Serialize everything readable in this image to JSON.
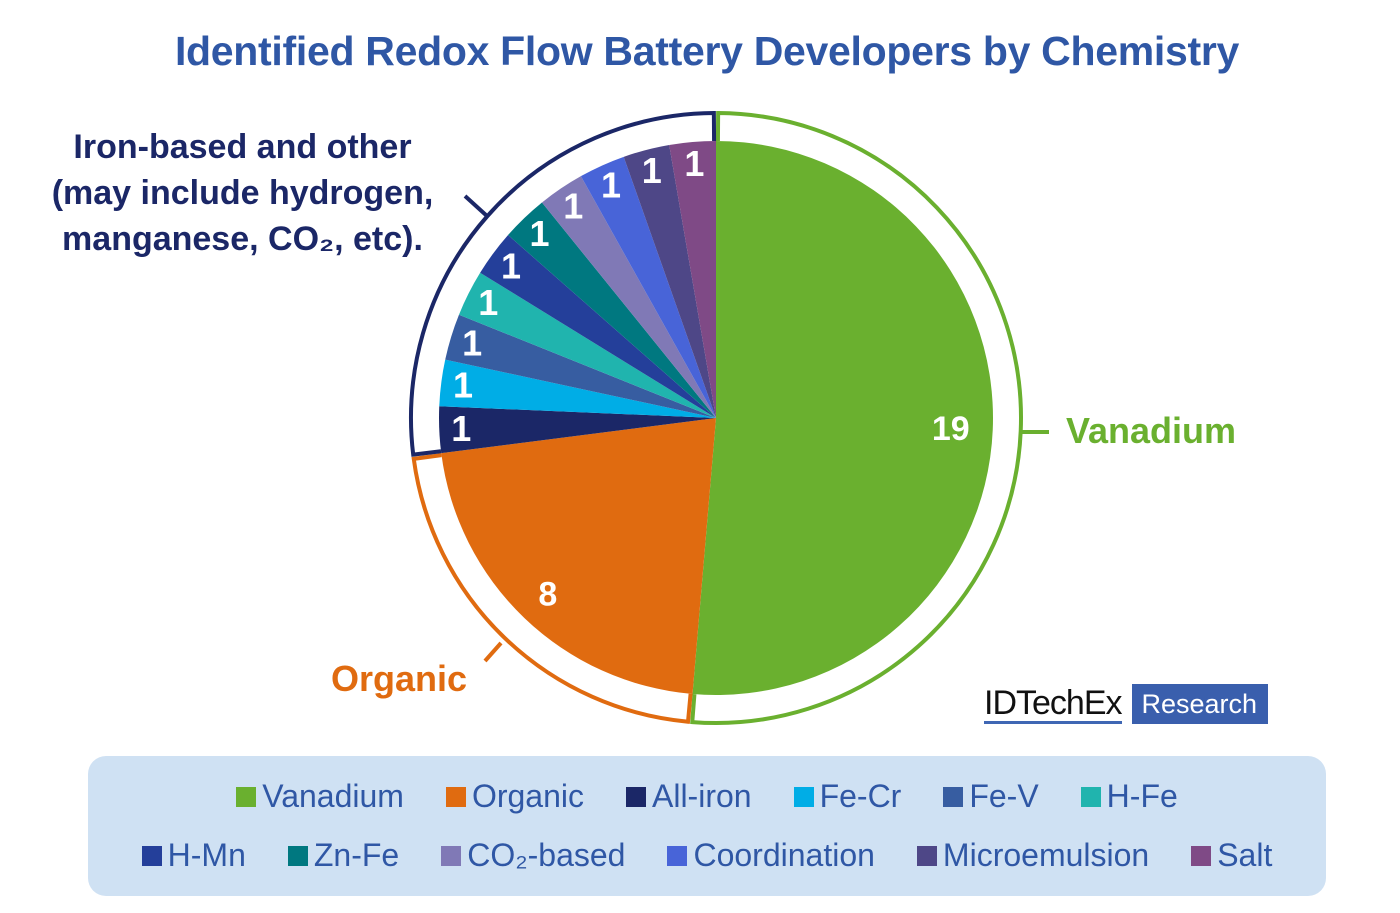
{
  "chart_data": {
    "type": "pie",
    "title": "Identified Redox Flow Battery Developers by Chemistry",
    "start": "top",
    "direction": "clockwise",
    "slices": [
      {
        "name": "Vanadium",
        "value": 19,
        "color": "#6ab02f"
      },
      {
        "name": "Organic",
        "value": 8,
        "color": "#e06b10"
      },
      {
        "name": "All-iron",
        "value": 1,
        "color": "#1b2767"
      },
      {
        "name": "Fe-Cr",
        "value": 1,
        "color": "#00ade6"
      },
      {
        "name": "Fe-V",
        "value": 1,
        "color": "#375da1"
      },
      {
        "name": "H-Fe",
        "value": 1,
        "color": "#20b4ae"
      },
      {
        "name": "H-Mn",
        "value": 1,
        "color": "#243f9a"
      },
      {
        "name": "Zn-Fe",
        "value": 1,
        "color": "#007880"
      },
      {
        "name": "CO₂-based",
        "value": 1,
        "color": "#8079b6"
      },
      {
        "name": "Coordination",
        "value": 1,
        "color": "#4864d8"
      },
      {
        "name": "Microemulsion",
        "value": 1,
        "color": "#4e4787"
      },
      {
        "name": "Salt",
        "value": 1,
        "color": "#7f4a86"
      }
    ],
    "groups": [
      {
        "label": "Vanadium",
        "members": [
          "Vanadium"
        ],
        "color": "#6ab02f"
      },
      {
        "label": "Organic",
        "members": [
          "Organic"
        ],
        "color": "#e06b10"
      },
      {
        "label": "Iron-based and other (may include hydrogen, manganese, CO₂, etc).",
        "members": [
          "All-iron",
          "Fe-Cr",
          "Fe-V",
          "H-Fe",
          "H-Mn",
          "Zn-Fe",
          "CO₂-based",
          "Coordination",
          "Microemulsion",
          "Salt"
        ],
        "color": "#1b2767"
      }
    ],
    "legend_position": "bottom"
  },
  "annotations": {
    "iron_line1": "Iron-based and other",
    "iron_line2": "(may include hydrogen,",
    "iron_line3": "manganese, CO₂, etc).",
    "vanadium": "Vanadium",
    "organic": "Organic"
  },
  "logo": {
    "brand": "IDTechEx",
    "tag": "Research"
  }
}
